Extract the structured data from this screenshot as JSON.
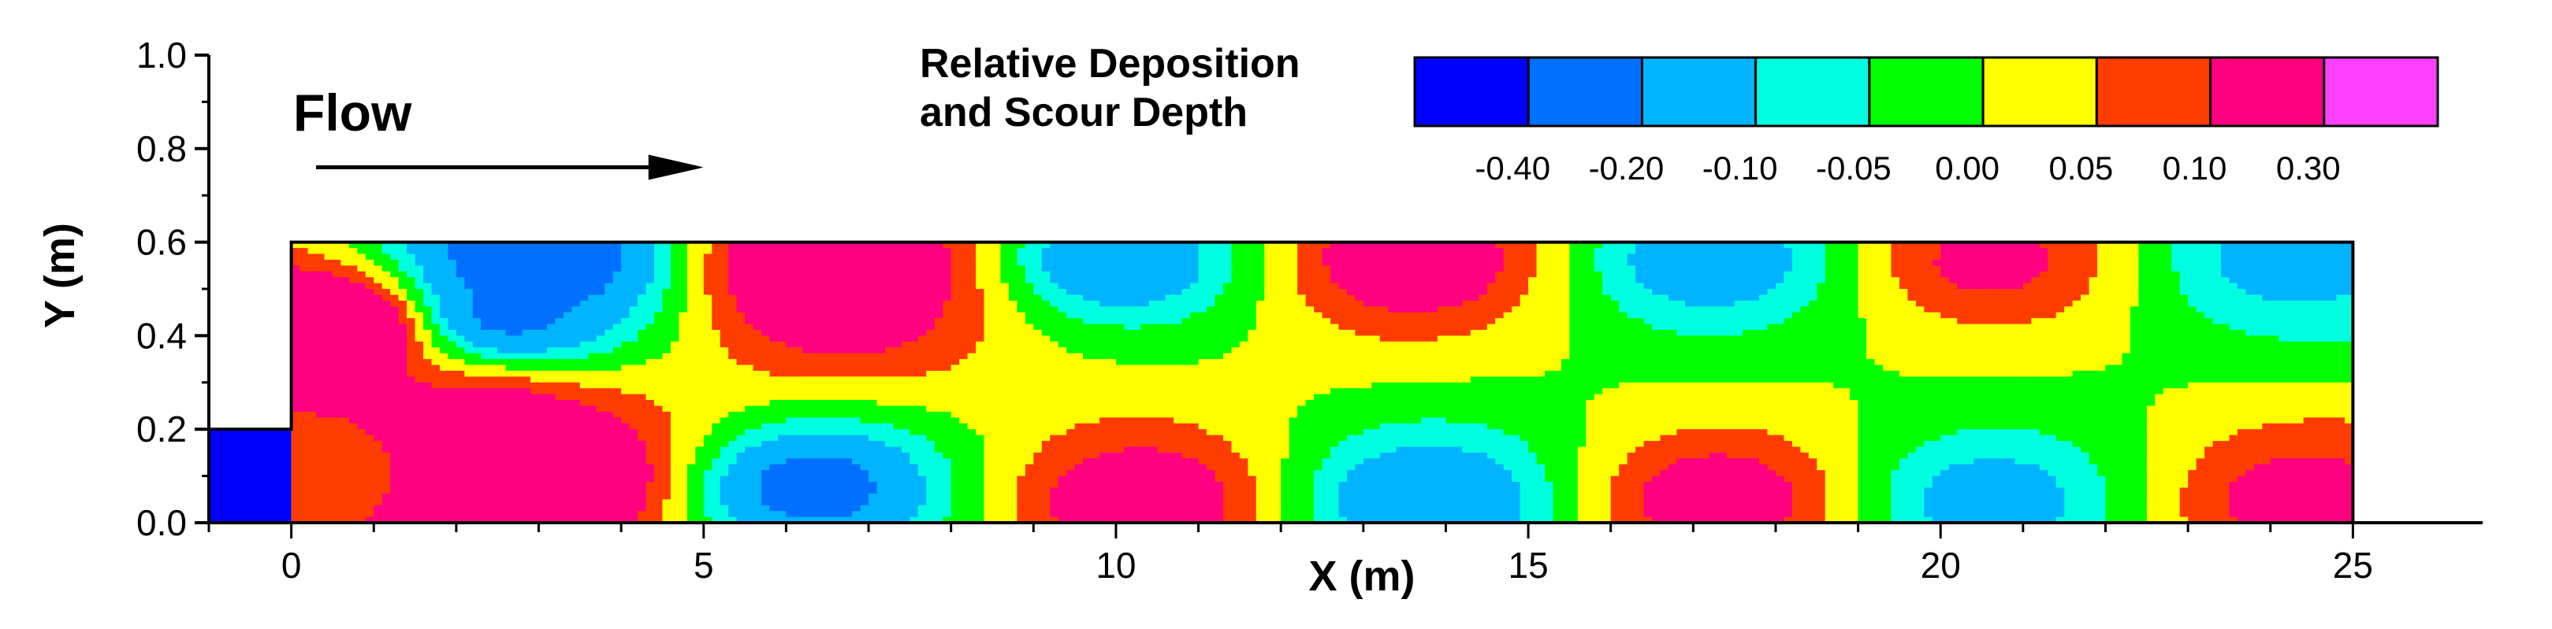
{
  "chart_data": {
    "type": "heatmap",
    "title": "",
    "xlabel": "X (m)",
    "ylabel": "Y (m)",
    "xlim": [
      -1,
      26
    ],
    "ylim": [
      0,
      1
    ],
    "xticks": [
      0,
      5,
      10,
      15,
      20,
      25
    ],
    "yticks": [
      "0.0",
      "0.2",
      "0.4",
      "0.6",
      "0.8",
      "1.0"
    ],
    "grid": false,
    "channel": {
      "x_start": 0,
      "x_end": 25,
      "width": 0.6,
      "upstream_x_start": -1,
      "upstream_width": 0.2
    },
    "annotation": {
      "text": "Flow",
      "arrow_from": [
        0.3,
        0.76
      ],
      "arrow_to": [
        5,
        0.76
      ]
    },
    "legend": {
      "title_lines": [
        "Relative Deposition",
        "and Scour Depth"
      ],
      "placement": "top-right",
      "levels": [
        "-0.40",
        "-0.20",
        "-0.10",
        "-0.05",
        "0.00",
        "0.05",
        "0.10",
        "0.30"
      ],
      "colors": [
        "#0000ff",
        "#0070ff",
        "#00b4ff",
        "#00ffe0",
        "#00ff00",
        "#ffff00",
        "#ff3c00",
        "#ff0080",
        "#ff40ff"
      ]
    },
    "upstream_value": -0.5,
    "field": [
      {
        "x": 0.6,
        "y": 0.42,
        "v": 0.35
      },
      {
        "x": 0.5,
        "y": 0.12,
        "v": 0.05
      },
      {
        "x": 3.0,
        "y": 0.1,
        "v": 0.35
      },
      {
        "x": 2.4,
        "y": 0.22,
        "v": 0.2
      },
      {
        "x": 3.0,
        "y": 0.56,
        "v": -0.45
      },
      {
        "x": 2.6,
        "y": 0.44,
        "v": -0.3
      },
      {
        "x": 6.5,
        "y": 0.55,
        "v": 0.35
      },
      {
        "x": 6.6,
        "y": 0.45,
        "v": 0.15
      },
      {
        "x": 6.3,
        "y": 0.08,
        "v": -0.32
      },
      {
        "x": 10.0,
        "y": 0.56,
        "v": -0.22
      },
      {
        "x": 10.3,
        "y": 0.05,
        "v": 0.2
      },
      {
        "x": 13.6,
        "y": 0.56,
        "v": 0.2
      },
      {
        "x": 13.8,
        "y": 0.05,
        "v": -0.22
      },
      {
        "x": 17.2,
        "y": 0.56,
        "v": -0.18
      },
      {
        "x": 17.3,
        "y": 0.05,
        "v": 0.18
      },
      {
        "x": 20.6,
        "y": 0.56,
        "v": 0.14
      },
      {
        "x": 20.6,
        "y": 0.05,
        "v": -0.16
      },
      {
        "x": 24.2,
        "y": 0.56,
        "v": -0.14
      },
      {
        "x": 24.3,
        "y": 0.05,
        "v": 0.14
      }
    ]
  }
}
